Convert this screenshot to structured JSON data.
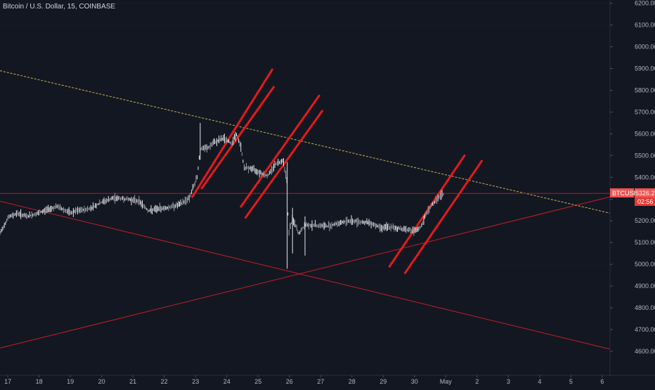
{
  "header": {
    "title": "Bitcoin / U.S. Dollar, 15, COINBASE"
  },
  "colors": {
    "background": "#131722",
    "axis_text": "#b2b5be",
    "grid": "#1e2230",
    "candle_up": "#e8e8e8",
    "candle_down": "#9aa0ab",
    "drawing_red": "#e31b1b",
    "thin_red": "#c41e24",
    "dashed_yellow": "#c9b84a",
    "price_tag": "#ef5350",
    "countdown_tag": "#e53935"
  },
  "price_tag": {
    "symbol": "BTCUSD",
    "price": "5326.21",
    "countdown": "02:56"
  },
  "chart_data": {
    "type": "candlestick",
    "title": "Bitcoin / U.S. Dollar, 15, COINBASE",
    "x_tick_labels": [
      "17",
      "18",
      "19",
      "20",
      "21",
      "22",
      "23",
      "24",
      "25",
      "26",
      "27",
      "28",
      "29",
      "30",
      "May",
      "2",
      "3",
      "4",
      "5",
      "6"
    ],
    "y_tick_labels": [
      "6200.00",
      "6100.00",
      "6000.00",
      "5900.00",
      "5800.00",
      "5700.00",
      "5600.00",
      "5500.00",
      "5400.00",
      "5300.00",
      "5200.00",
      "5100.00",
      "5000.00",
      "4900.00",
      "4800.00",
      "4700.00",
      "4600.00"
    ],
    "x_range": [
      16.75,
      36.25
    ],
    "ylim": [
      4490,
      6215
    ],
    "grid": false,
    "price_path": [
      [
        16.75,
        5140
      ],
      [
        17.0,
        5215
      ],
      [
        17.3,
        5235
      ],
      [
        17.6,
        5220
      ],
      [
        18.0,
        5235
      ],
      [
        18.3,
        5255
      ],
      [
        18.6,
        5265
      ],
      [
        19.0,
        5235
      ],
      [
        19.2,
        5245
      ],
      [
        19.6,
        5255
      ],
      [
        20.0,
        5285
      ],
      [
        20.4,
        5305
      ],
      [
        20.8,
        5300
      ],
      [
        21.2,
        5290
      ],
      [
        21.5,
        5245
      ],
      [
        21.8,
        5255
      ],
      [
        22.1,
        5260
      ],
      [
        22.5,
        5275
      ],
      [
        22.8,
        5305
      ],
      [
        23.05,
        5400
      ],
      [
        23.15,
        5530
      ],
      [
        23.4,
        5535
      ],
      [
        23.6,
        5560
      ],
      [
        23.9,
        5580
      ],
      [
        24.15,
        5555
      ],
      [
        24.3,
        5600
      ],
      [
        24.45,
        5540
      ],
      [
        24.55,
        5445
      ],
      [
        24.8,
        5440
      ],
      [
        25.1,
        5420
      ],
      [
        25.3,
        5405
      ],
      [
        25.55,
        5460
      ],
      [
        25.8,
        5480
      ],
      [
        25.93,
        5380
      ],
      [
        25.97,
        5140
      ],
      [
        26.1,
        5210
      ],
      [
        26.3,
        5140
      ],
      [
        26.5,
        5180
      ],
      [
        26.8,
        5180
      ],
      [
        27.2,
        5175
      ],
      [
        27.6,
        5190
      ],
      [
        27.9,
        5200
      ],
      [
        28.3,
        5195
      ],
      [
        28.6,
        5190
      ],
      [
        28.9,
        5170
      ],
      [
        29.2,
        5170
      ],
      [
        29.5,
        5165
      ],
      [
        29.8,
        5160
      ],
      [
        30.0,
        5150
      ],
      [
        30.2,
        5170
      ],
      [
        30.4,
        5240
      ],
      [
        30.6,
        5280
      ],
      [
        30.8,
        5310
      ],
      [
        30.95,
        5326
      ]
    ],
    "wicks": [
      {
        "x": 23.15,
        "low": 5480,
        "high": 5650
      },
      {
        "x": 25.93,
        "low": 4980,
        "high": 5470
      },
      {
        "x": 26.1,
        "low": 5050,
        "high": 5260
      },
      {
        "x": 26.5,
        "low": 5040,
        "high": 5220
      }
    ],
    "drawings": [
      {
        "kind": "trendline",
        "style": "thin",
        "points": [
          [
            16.75,
            5290
          ],
          [
            36.25,
            4610
          ]
        ]
      },
      {
        "kind": "trendline",
        "style": "thin",
        "points": [
          [
            16.75,
            4615
          ],
          [
            36.25,
            5310
          ]
        ]
      },
      {
        "kind": "trendline",
        "style": "dashed",
        "points": [
          [
            16.75,
            5890
          ],
          [
            36.25,
            5235
          ]
        ]
      },
      {
        "kind": "trendline",
        "style": "thick",
        "points": [
          [
            22.9,
            5310
          ],
          [
            25.45,
            5895
          ]
        ]
      },
      {
        "kind": "trendline",
        "style": "thick",
        "points": [
          [
            23.2,
            5350
          ],
          [
            25.5,
            5815
          ]
        ]
      },
      {
        "kind": "trendline",
        "style": "thick",
        "points": [
          [
            24.45,
            5265
          ],
          [
            26.95,
            5775
          ]
        ]
      },
      {
        "kind": "trendline",
        "style": "thick",
        "points": [
          [
            24.6,
            5215
          ],
          [
            27.05,
            5705
          ]
        ]
      },
      {
        "kind": "trendline",
        "style": "thick",
        "points": [
          [
            29.2,
            4990
          ],
          [
            31.6,
            5500
          ]
        ]
      },
      {
        "kind": "trendline",
        "style": "thick",
        "points": [
          [
            29.7,
            4960
          ],
          [
            32.15,
            5475
          ]
        ]
      },
      {
        "kind": "horizontal",
        "price": 5326
      }
    ]
  }
}
